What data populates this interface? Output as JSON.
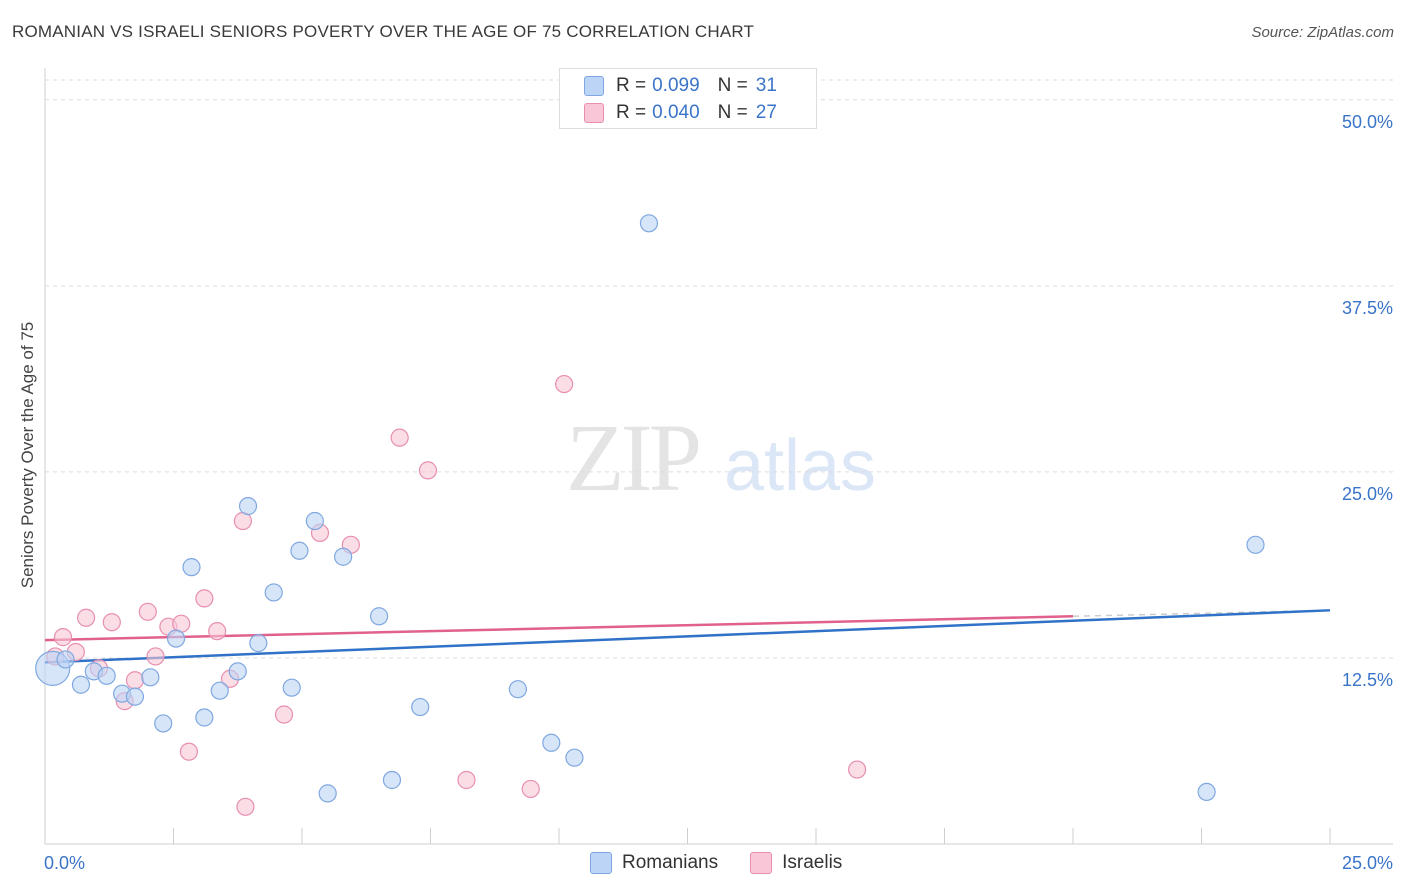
{
  "title": "ROMANIAN VS ISRAELI SENIORS POVERTY OVER THE AGE OF 75 CORRELATION CHART",
  "source": "Source: ZipAtlas.com",
  "watermark": {
    "zip": "ZIP",
    "atlas": "atlas"
  },
  "colors": {
    "blue_fill": "#bcd4f5",
    "blue_stroke": "#7fa8e0",
    "blue_line": "#2f72c8",
    "pink_fill": "#f8c6d6",
    "pink_stroke": "#e88fb0",
    "pink_line": "#e0608e",
    "axis_label": "#3a74c9",
    "grid": "#dcdcdc"
  },
  "legend": [
    {
      "r_label": "R =",
      "r_value": "0.099",
      "n_label": "N =",
      "n_value": "31"
    },
    {
      "r_label": "R =",
      "r_value": "0.040",
      "n_label": "N =",
      "n_value": "27"
    }
  ],
  "chart_data": {
    "type": "scatter",
    "title": "ROMANIAN VS ISRAELI SENIORS POVERTY OVER THE AGE OF 75 CORRELATION CHART",
    "xlabel": "",
    "ylabel": "Seniors Poverty Over the Age of 75",
    "xlim": [
      0,
      25
    ],
    "ylim": [
      0,
      52
    ],
    "x_tick_labels": [
      "0.0%",
      "25.0%"
    ],
    "y_ticks": [
      12.5,
      25.0,
      37.5,
      50.0
    ],
    "y_tick_labels": [
      "12.5%",
      "25.0%",
      "37.5%",
      "50.0%"
    ],
    "grid": true,
    "legend_position": "top-center",
    "series": [
      {
        "name": "Romanians",
        "color": "blue",
        "r": 0.099,
        "n": 31,
        "trend": {
          "x0": 0,
          "y0": 12.2,
          "x1": 25,
          "y1": 15.7
        },
        "points": [
          [
            0.15,
            11.8
          ],
          [
            0.4,
            12.4
          ],
          [
            0.7,
            10.7
          ],
          [
            0.95,
            11.6
          ],
          [
            1.2,
            11.3
          ],
          [
            1.5,
            10.1
          ],
          [
            1.75,
            9.9
          ],
          [
            2.05,
            11.2
          ],
          [
            2.3,
            8.1
          ],
          [
            2.55,
            13.8
          ],
          [
            2.85,
            18.6
          ],
          [
            3.1,
            8.5
          ],
          [
            3.4,
            10.3
          ],
          [
            3.75,
            11.6
          ],
          [
            3.95,
            22.7
          ],
          [
            4.15,
            13.5
          ],
          [
            4.45,
            16.9
          ],
          [
            4.8,
            10.5
          ],
          [
            4.95,
            19.7
          ],
          [
            5.25,
            21.7
          ],
          [
            5.5,
            3.4
          ],
          [
            5.8,
            19.3
          ],
          [
            6.5,
            15.3
          ],
          [
            6.75,
            4.3
          ],
          [
            7.3,
            9.2
          ],
          [
            9.2,
            10.4
          ],
          [
            9.85,
            6.8
          ],
          [
            10.3,
            5.8
          ],
          [
            11.75,
            41.7
          ],
          [
            22.6,
            3.5
          ],
          [
            23.55,
            20.1
          ]
        ]
      },
      {
        "name": "Israelis",
        "color": "pink",
        "r": 0.04,
        "n": 27,
        "trend": {
          "x0": 0,
          "y0": 13.7,
          "x1": 20,
          "y1": 15.3
        },
        "points": [
          [
            0.2,
            12.6
          ],
          [
            0.35,
            13.9
          ],
          [
            0.6,
            12.9
          ],
          [
            0.8,
            15.2
          ],
          [
            1.05,
            11.8
          ],
          [
            1.3,
            14.9
          ],
          [
            1.55,
            9.6
          ],
          [
            1.75,
            11.0
          ],
          [
            2.0,
            15.6
          ],
          [
            2.15,
            12.6
          ],
          [
            2.4,
            14.6
          ],
          [
            2.65,
            14.8
          ],
          [
            2.8,
            6.2
          ],
          [
            3.1,
            16.5
          ],
          [
            3.35,
            14.3
          ],
          [
            3.6,
            11.1
          ],
          [
            3.85,
            21.7
          ],
          [
            3.9,
            2.5
          ],
          [
            4.65,
            8.7
          ],
          [
            5.35,
            20.9
          ],
          [
            5.95,
            20.1
          ],
          [
            6.9,
            27.3
          ],
          [
            7.45,
            25.1
          ],
          [
            8.2,
            4.3
          ],
          [
            9.45,
            3.7
          ],
          [
            10.1,
            30.9
          ],
          [
            15.8,
            5.0
          ]
        ]
      }
    ]
  },
  "bottom_legend": [
    "Romanians",
    "Israelis"
  ]
}
